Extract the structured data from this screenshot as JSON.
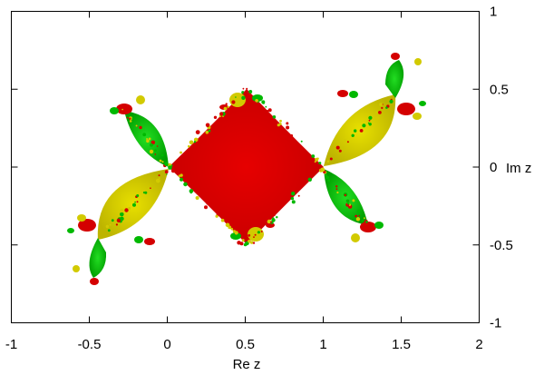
{
  "chart_data": {
    "type": "other",
    "title": "",
    "xlabel": "Re z",
    "ylabel": "Im z",
    "xlim": [
      -1,
      2
    ],
    "ylim": [
      -1,
      1
    ],
    "x_ticks": [
      "-1",
      "-0.5",
      "0",
      "0.5",
      "1",
      "1.5",
      "2"
    ],
    "y_ticks": [
      "-1",
      "-0.5",
      "0",
      "0.5",
      "1"
    ],
    "y_axis_side": "right",
    "grid": false,
    "colors": {
      "red": "#e10000",
      "yellow": "#d8d000",
      "green": "#00c800",
      "axis": "#000000"
    }
  }
}
